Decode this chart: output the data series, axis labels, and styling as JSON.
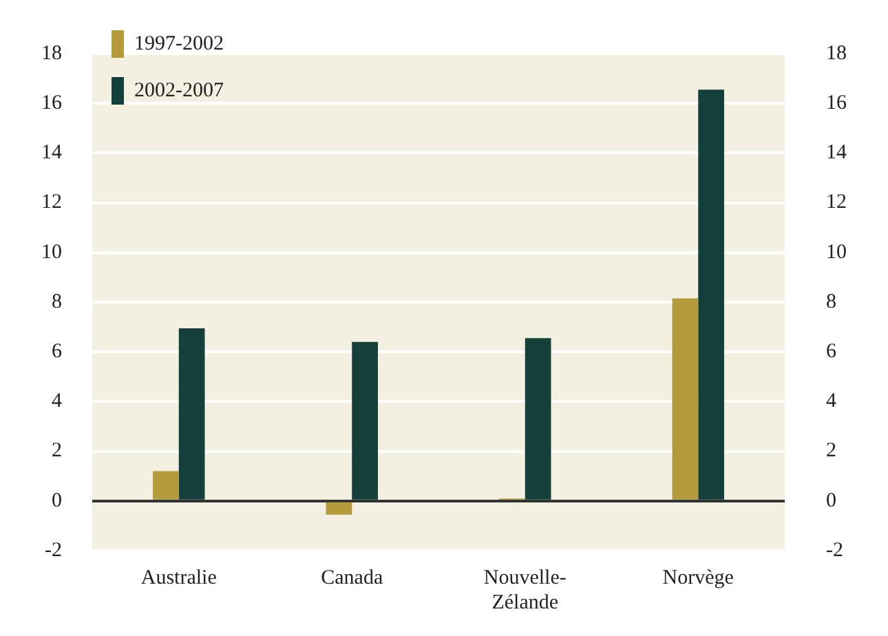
{
  "chart_data": {
    "type": "bar",
    "categories": [
      "Australie",
      "Canada",
      "Nouvelle-Zélande",
      "Norvège"
    ],
    "series": [
      {
        "name": "1997-2002",
        "color": "#b39a3a",
        "values": [
          1.2,
          -0.55,
          0.1,
          8.15
        ]
      },
      {
        "name": "2002-2007",
        "color": "#153f3a",
        "values": [
          6.95,
          6.4,
          6.55,
          16.55
        ]
      }
    ],
    "ylim": [
      -2,
      18
    ],
    "yticks": [
      -2,
      0,
      2,
      4,
      6,
      8,
      10,
      12,
      14,
      16,
      18
    ],
    "y2lim": [
      -2,
      18
    ],
    "y2ticks": [
      -2,
      0,
      2,
      4,
      6,
      8,
      10,
      12,
      14,
      16,
      18
    ],
    "grid": "y",
    "legend": "top left"
  }
}
